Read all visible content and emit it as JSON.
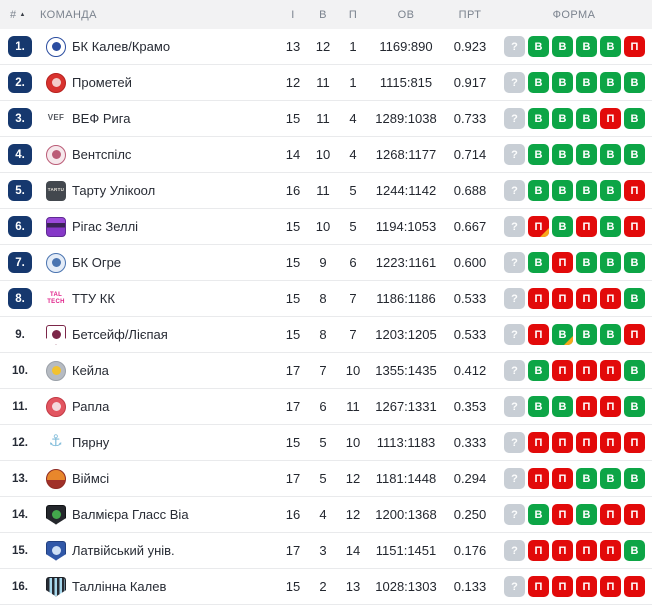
{
  "table": {
    "columns": {
      "rank": "#",
      "team": "КОМАНДА",
      "games": "І",
      "wins": "В",
      "losses": "П",
      "score": "ОВ",
      "pct": "ПРТ",
      "form": "ФОРМА"
    },
    "sort_icon": "▲",
    "form_placeholder": "?",
    "colors": {
      "win": "#0da546",
      "loss": "#e20a0a",
      "upcoming": "#c8ced5",
      "overtime_corner": "#f7a81b",
      "rank_badge": "#16386e",
      "header_bg": "#f2f2f3"
    },
    "rows": [
      {
        "rank": "1.",
        "highlighted": true,
        "team": "БК Калев/Крамо",
        "games": "13",
        "wins": "12",
        "losses": "1",
        "score": "1169:890",
        "pct": "0.923",
        "logo": {
          "shape": "circle",
          "bg": "#ffffff",
          "border": "#2b4da0",
          "inner": "#2b4da0"
        },
        "form": [
          {
            "letter": "В",
            "result": "win"
          },
          {
            "letter": "В",
            "result": "win"
          },
          {
            "letter": "В",
            "result": "win"
          },
          {
            "letter": "В",
            "result": "win"
          },
          {
            "letter": "П",
            "result": "loss"
          }
        ]
      },
      {
        "rank": "2.",
        "highlighted": true,
        "team": "Прометей",
        "games": "12",
        "wins": "11",
        "losses": "1",
        "score": "1115:815",
        "pct": "0.917",
        "logo": {
          "shape": "circle",
          "bg": "#d8322e",
          "border": "#b7211e",
          "inner": "#f3cdc9"
        },
        "form": [
          {
            "letter": "В",
            "result": "win"
          },
          {
            "letter": "В",
            "result": "win"
          },
          {
            "letter": "В",
            "result": "win"
          },
          {
            "letter": "В",
            "result": "win"
          },
          {
            "letter": "В",
            "result": "win"
          }
        ]
      },
      {
        "rank": "3.",
        "highlighted": true,
        "team": "ВЕФ Рига",
        "games": "15",
        "wins": "11",
        "losses": "4",
        "score": "1289:1038",
        "pct": "0.733",
        "logo": {
          "shape": "text",
          "text": "VEF",
          "fg": "#53575e",
          "size": "8px"
        },
        "form": [
          {
            "letter": "В",
            "result": "win"
          },
          {
            "letter": "В",
            "result": "win"
          },
          {
            "letter": "В",
            "result": "win"
          },
          {
            "letter": "П",
            "result": "loss"
          },
          {
            "letter": "В",
            "result": "win"
          }
        ]
      },
      {
        "rank": "4.",
        "highlighted": true,
        "team": "Вентспілс",
        "games": "14",
        "wins": "10",
        "losses": "4",
        "score": "1268:1177",
        "pct": "0.714",
        "logo": {
          "shape": "circle",
          "bg": "#f6e8ec",
          "border": "#bb5c77",
          "inner": "#bb5c77"
        },
        "form": [
          {
            "letter": "В",
            "result": "win"
          },
          {
            "letter": "В",
            "result": "win"
          },
          {
            "letter": "В",
            "result": "win"
          },
          {
            "letter": "В",
            "result": "win"
          },
          {
            "letter": "В",
            "result": "win"
          }
        ]
      },
      {
        "rank": "5.",
        "highlighted": true,
        "team": "Тарту Улікоол",
        "games": "16",
        "wins": "11",
        "losses": "5",
        "score": "1244:1142",
        "pct": "0.688",
        "logo": {
          "shape": "square",
          "bg": "#43484e",
          "text": "TARTU",
          "fg": "#e8e4da",
          "size": "4.5px"
        },
        "form": [
          {
            "letter": "В",
            "result": "win"
          },
          {
            "letter": "В",
            "result": "win"
          },
          {
            "letter": "В",
            "result": "win"
          },
          {
            "letter": "В",
            "result": "win"
          },
          {
            "letter": "П",
            "result": "loss"
          }
        ]
      },
      {
        "rank": "6.",
        "highlighted": true,
        "team": "Рігас Зеллі",
        "games": "15",
        "wins": "10",
        "losses": "5",
        "score": "1194:1053",
        "pct": "0.667",
        "logo": {
          "shape": "square",
          "bg": "linear-gradient(180deg,#9b4ad9 0%,#9b4ad9 28%,#3a2355 28%,#3a2355 52%,#8638c8 52%,#8638c8 100%)",
          "border": "#5f2a93"
        },
        "form": [
          {
            "letter": "П",
            "result": "loss",
            "overtime": true
          },
          {
            "letter": "В",
            "result": "win"
          },
          {
            "letter": "П",
            "result": "loss"
          },
          {
            "letter": "В",
            "result": "win"
          },
          {
            "letter": "П",
            "result": "loss"
          }
        ]
      },
      {
        "rank": "7.",
        "highlighted": true,
        "team": "БК Огре",
        "games": "15",
        "wins": "9",
        "losses": "6",
        "score": "1223:1161",
        "pct": "0.600",
        "logo": {
          "shape": "circle",
          "bg": "#e4ecf7",
          "border": "#4a74b0",
          "inner": "#4a74b0"
        },
        "form": [
          {
            "letter": "В",
            "result": "win"
          },
          {
            "letter": "П",
            "result": "loss"
          },
          {
            "letter": "В",
            "result": "win"
          },
          {
            "letter": "В",
            "result": "win"
          },
          {
            "letter": "В",
            "result": "win"
          }
        ]
      },
      {
        "rank": "8.",
        "highlighted": true,
        "team": "ТТУ КК",
        "games": "15",
        "wins": "8",
        "losses": "7",
        "score": "1186:1186",
        "pct": "0.533",
        "logo": {
          "shape": "text",
          "text": "TAL TECH",
          "fg": "#e0218a",
          "size": "6px"
        },
        "form": [
          {
            "letter": "П",
            "result": "loss"
          },
          {
            "letter": "П",
            "result": "loss"
          },
          {
            "letter": "П",
            "result": "loss"
          },
          {
            "letter": "П",
            "result": "loss"
          },
          {
            "letter": "В",
            "result": "win"
          }
        ]
      },
      {
        "rank": "9.",
        "highlighted": false,
        "team": "Бетсейф/Лієпая",
        "games": "15",
        "wins": "8",
        "losses": "7",
        "score": "1203:1205",
        "pct": "0.533",
        "logo": {
          "shape": "shield",
          "bg": "#ffffff",
          "border": "#7c2749",
          "inner": "#7c2749"
        },
        "form": [
          {
            "letter": "П",
            "result": "loss"
          },
          {
            "letter": "В",
            "result": "win",
            "overtime": true
          },
          {
            "letter": "В",
            "result": "win"
          },
          {
            "letter": "В",
            "result": "win"
          },
          {
            "letter": "П",
            "result": "loss"
          }
        ]
      },
      {
        "rank": "10.",
        "highlighted": false,
        "team": "Кейла",
        "games": "17",
        "wins": "7",
        "losses": "10",
        "score": "1355:1435",
        "pct": "0.412",
        "logo": {
          "shape": "circle",
          "bg": "#b6bbc2",
          "border": "#9aa0a8",
          "inner": "#f2c230"
        },
        "form": [
          {
            "letter": "В",
            "result": "win"
          },
          {
            "letter": "П",
            "result": "loss"
          },
          {
            "letter": "П",
            "result": "loss"
          },
          {
            "letter": "П",
            "result": "loss"
          },
          {
            "letter": "В",
            "result": "win"
          }
        ]
      },
      {
        "rank": "11.",
        "highlighted": false,
        "team": "Рапла",
        "games": "17",
        "wins": "6",
        "losses": "11",
        "score": "1267:1331",
        "pct": "0.353",
        "logo": {
          "shape": "circle",
          "bg": "#e25560",
          "border": "#c23a45",
          "inner": "#f4d9dc"
        },
        "form": [
          {
            "letter": "В",
            "result": "win"
          },
          {
            "letter": "В",
            "result": "win"
          },
          {
            "letter": "П",
            "result": "loss"
          },
          {
            "letter": "П",
            "result": "loss"
          },
          {
            "letter": "В",
            "result": "win"
          }
        ]
      },
      {
        "rank": "12.",
        "highlighted": false,
        "team": "Пярну",
        "games": "15",
        "wins": "5",
        "losses": "10",
        "score": "1113:1183",
        "pct": "0.333",
        "logo": {
          "shape": "glyph",
          "text": "⚓",
          "fg": "#85bedb",
          "size": "16px"
        },
        "form": [
          {
            "letter": "П",
            "result": "loss"
          },
          {
            "letter": "П",
            "result": "loss"
          },
          {
            "letter": "П",
            "result": "loss"
          },
          {
            "letter": "П",
            "result": "loss"
          },
          {
            "letter": "П",
            "result": "loss"
          }
        ]
      },
      {
        "rank": "13.",
        "highlighted": false,
        "team": "Віймсі",
        "games": "17",
        "wins": "5",
        "losses": "12",
        "score": "1181:1448",
        "pct": "0.294",
        "logo": {
          "shape": "circle",
          "bg": "linear-gradient(180deg,#e8872c 0%,#e8872c 55%,#a03028 55%,#a03028 100%)",
          "border": "#8e2a22"
        },
        "form": [
          {
            "letter": "П",
            "result": "loss"
          },
          {
            "letter": "П",
            "result": "loss"
          },
          {
            "letter": "В",
            "result": "win"
          },
          {
            "letter": "В",
            "result": "win"
          },
          {
            "letter": "В",
            "result": "win"
          }
        ]
      },
      {
        "rank": "14.",
        "highlighted": false,
        "team": "Валмієра Гласс Віа",
        "games": "16",
        "wins": "4",
        "losses": "12",
        "score": "1200:1368",
        "pct": "0.250",
        "logo": {
          "shape": "shield",
          "bg": "#24272c",
          "border": "#101215",
          "inner": "#43a84c"
        },
        "form": [
          {
            "letter": "В",
            "result": "win"
          },
          {
            "letter": "П",
            "result": "loss"
          },
          {
            "letter": "В",
            "result": "win"
          },
          {
            "letter": "П",
            "result": "loss"
          },
          {
            "letter": "П",
            "result": "loss"
          }
        ]
      },
      {
        "rank": "15.",
        "highlighted": false,
        "team": "Латвійський унів.",
        "games": "17",
        "wins": "3",
        "losses": "14",
        "score": "1151:1451",
        "pct": "0.176",
        "logo": {
          "shape": "shield",
          "bg": "#3158a8",
          "border": "#22407f",
          "inner": "#cfe0f5"
        },
        "form": [
          {
            "letter": "П",
            "result": "loss"
          },
          {
            "letter": "П",
            "result": "loss"
          },
          {
            "letter": "П",
            "result": "loss"
          },
          {
            "letter": "П",
            "result": "loss"
          },
          {
            "letter": "В",
            "result": "win"
          }
        ]
      },
      {
        "rank": "16.",
        "highlighted": false,
        "team": "Таллінна Калев",
        "games": "15",
        "wins": "2",
        "losses": "13",
        "score": "1028:1303",
        "pct": "0.133",
        "logo": {
          "shape": "shield",
          "bg": "repeating-linear-gradient(90deg,#262b33 0px,#262b33 2.5px,#a8d8ec 2.5px,#a8d8ec 5px)",
          "border": "#1d2127"
        },
        "form": [
          {
            "letter": "П",
            "result": "loss"
          },
          {
            "letter": "П",
            "result": "loss"
          },
          {
            "letter": "П",
            "result": "loss"
          },
          {
            "letter": "П",
            "result": "loss"
          },
          {
            "letter": "П",
            "result": "loss"
          }
        ]
      }
    ]
  }
}
